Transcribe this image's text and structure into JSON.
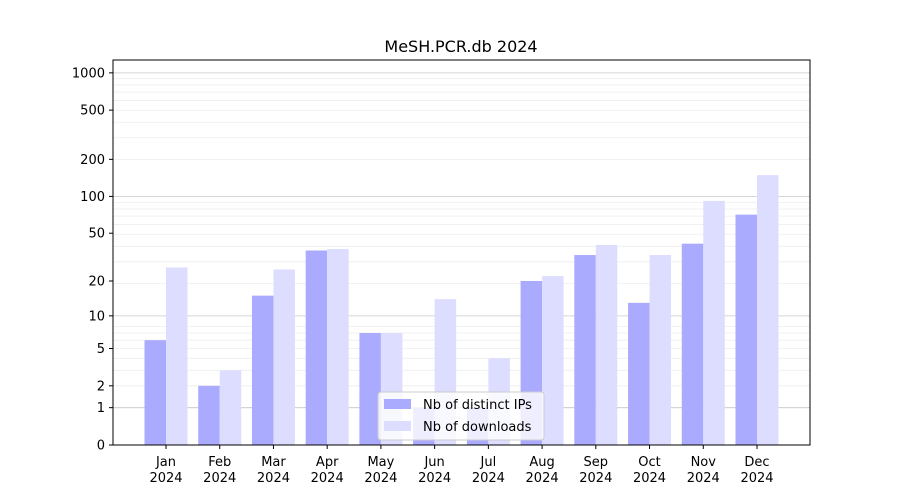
{
  "chart_data": {
    "type": "bar",
    "title": "MeSH.PCR.db 2024",
    "xlabel": "",
    "ylabel": "",
    "yscale": "log10(1+y)",
    "ylim": [
      0,
      1270
    ],
    "yticks": [
      0,
      1,
      2,
      5,
      10,
      20,
      50,
      100,
      200,
      500,
      1000
    ],
    "grid": true,
    "legend_position": "bottom-center",
    "categories": [
      "Jan\n2024",
      "Feb\n2024",
      "Mar\n2024",
      "Apr\n2024",
      "May\n2024",
      "Jun\n2024",
      "Jul\n2024",
      "Aug\n2024",
      "Sep\n2024",
      "Oct\n2024",
      "Nov\n2024",
      "Dec\n2024"
    ],
    "series": [
      {
        "name": "Nb of distinct IPs",
        "color": "#aaaaff",
        "values": [
          6,
          2,
          15,
          36,
          7,
          1,
          1,
          20,
          33,
          13,
          41,
          71
        ]
      },
      {
        "name": "Nb of downloads",
        "color": "#ddddff",
        "values": [
          26,
          3,
          25,
          37,
          7,
          14,
          4,
          22,
          40,
          33,
          92,
          149
        ]
      }
    ]
  }
}
